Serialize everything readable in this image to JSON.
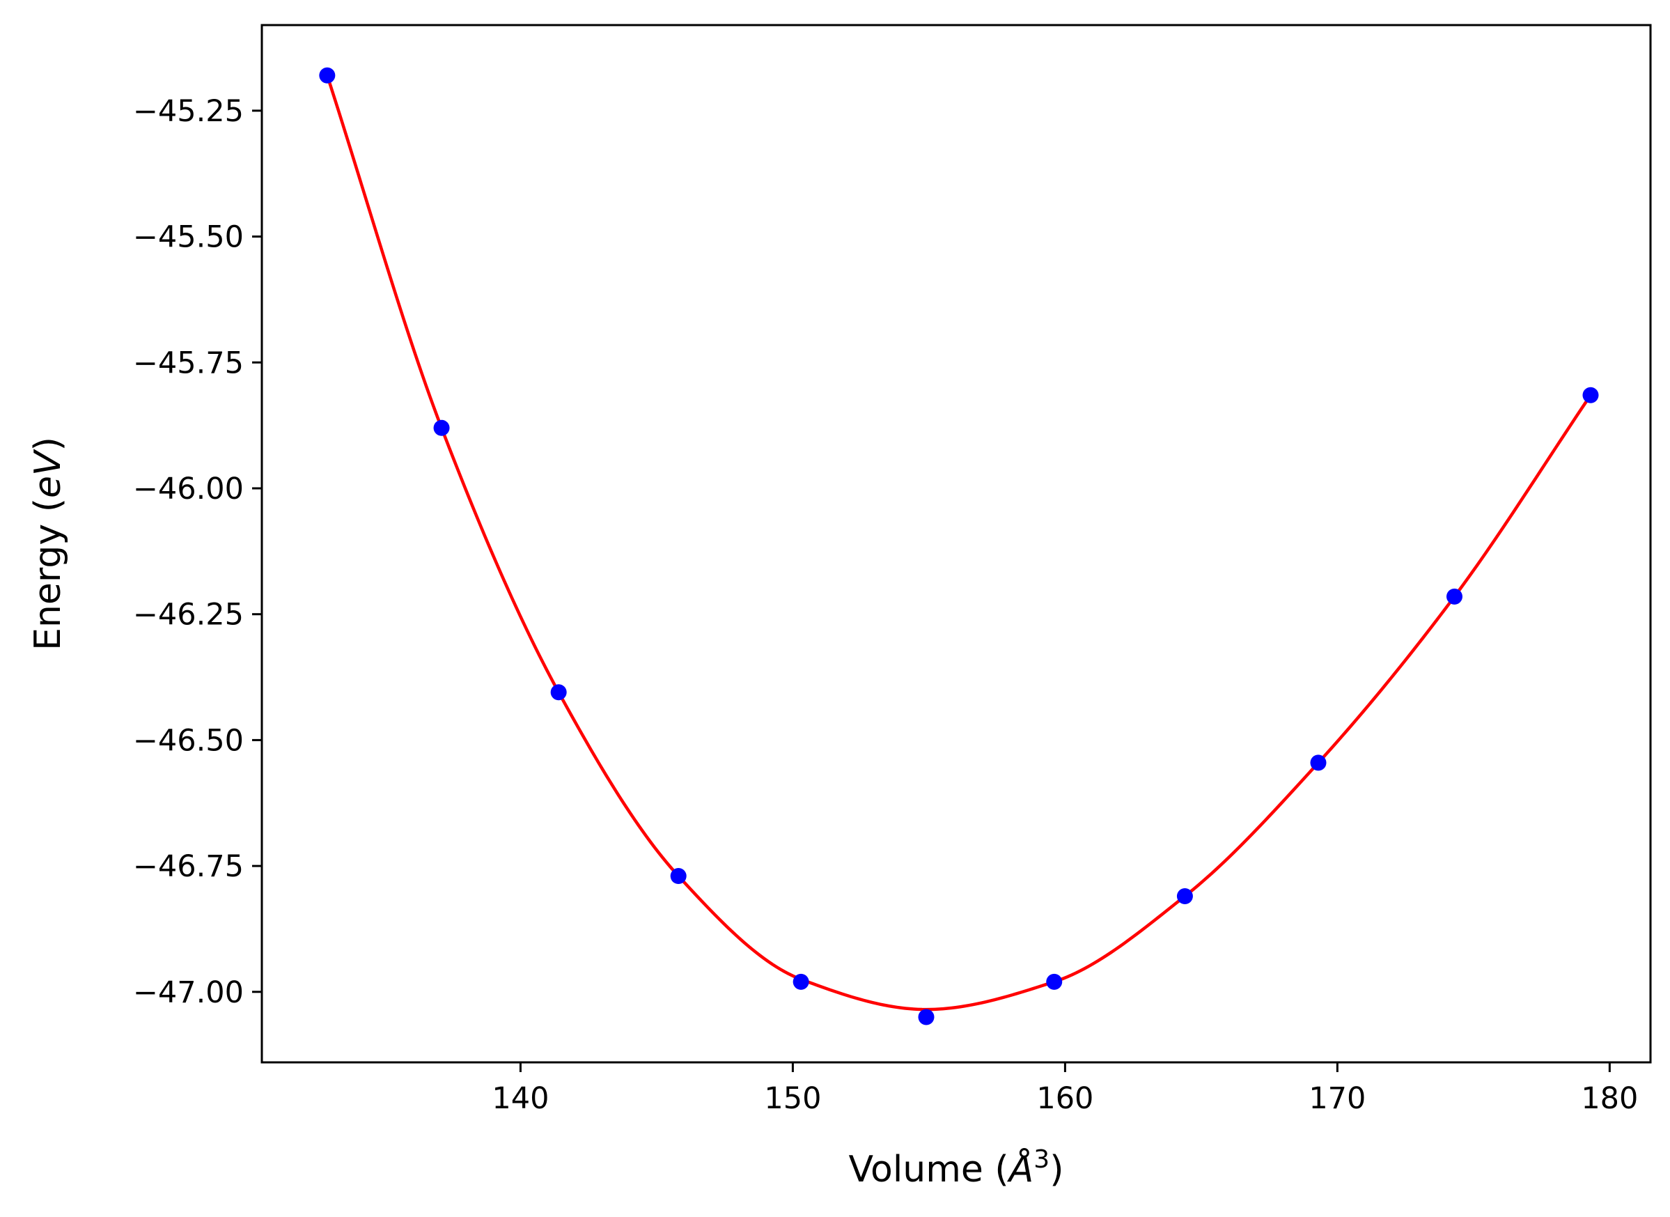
{
  "chart_data": {
    "type": "scatter",
    "title": "",
    "xlabel": "Volume ($\\AA^3$)",
    "xlabel_parts": {
      "prefix": "Volume (",
      "unit_base": "Å",
      "unit_exp": "3",
      "suffix": ")"
    },
    "ylabel": "Energy ($eV$)",
    "ylabel_parts": {
      "prefix": "Energy (",
      "unit": "eV",
      "suffix": ")"
    },
    "xlim": [
      130.5,
      181.5
    ],
    "ylim": [
      -47.14,
      -45.08
    ],
    "x_ticks": [
      140,
      150,
      160,
      170,
      180
    ],
    "y_ticks": [
      -45.25,
      -45.5,
      -45.75,
      -46.0,
      -46.25,
      -46.5,
      -46.75,
      -47.0
    ],
    "x_tick_labels": [
      "140",
      "150",
      "160",
      "170",
      "180"
    ],
    "y_tick_labels": [
      "−45.25",
      "−45.50",
      "−45.75",
      "−46.00",
      "−46.25",
      "−46.50",
      "−46.75",
      "−47.00"
    ],
    "grid": false,
    "series": [
      {
        "type": "scatter",
        "color": "#0000ff",
        "x": [
          132.9,
          137.1,
          141.4,
          145.8,
          150.3,
          154.9,
          159.6,
          164.4,
          169.3,
          174.3,
          179.3
        ],
        "y": [
          -45.18,
          -45.88,
          -46.405,
          -46.77,
          -46.98,
          -47.05,
          -46.98,
          -46.81,
          -46.545,
          -46.215,
          -45.815
        ]
      },
      {
        "type": "line",
        "color": "#ff0000",
        "fit": "birch-murnaghan",
        "x": [
          132.9,
          137.1,
          141.4,
          145.8,
          150.3,
          154.9,
          159.6,
          164.4,
          169.3,
          174.3,
          179.3
        ],
        "y": [
          -45.18,
          -45.88,
          -46.405,
          -46.77,
          -46.975,
          -47.035,
          -46.98,
          -46.81,
          -46.545,
          -46.215,
          -45.815
        ],
        "v0": 154.9,
        "e0": -47.035
      }
    ]
  }
}
